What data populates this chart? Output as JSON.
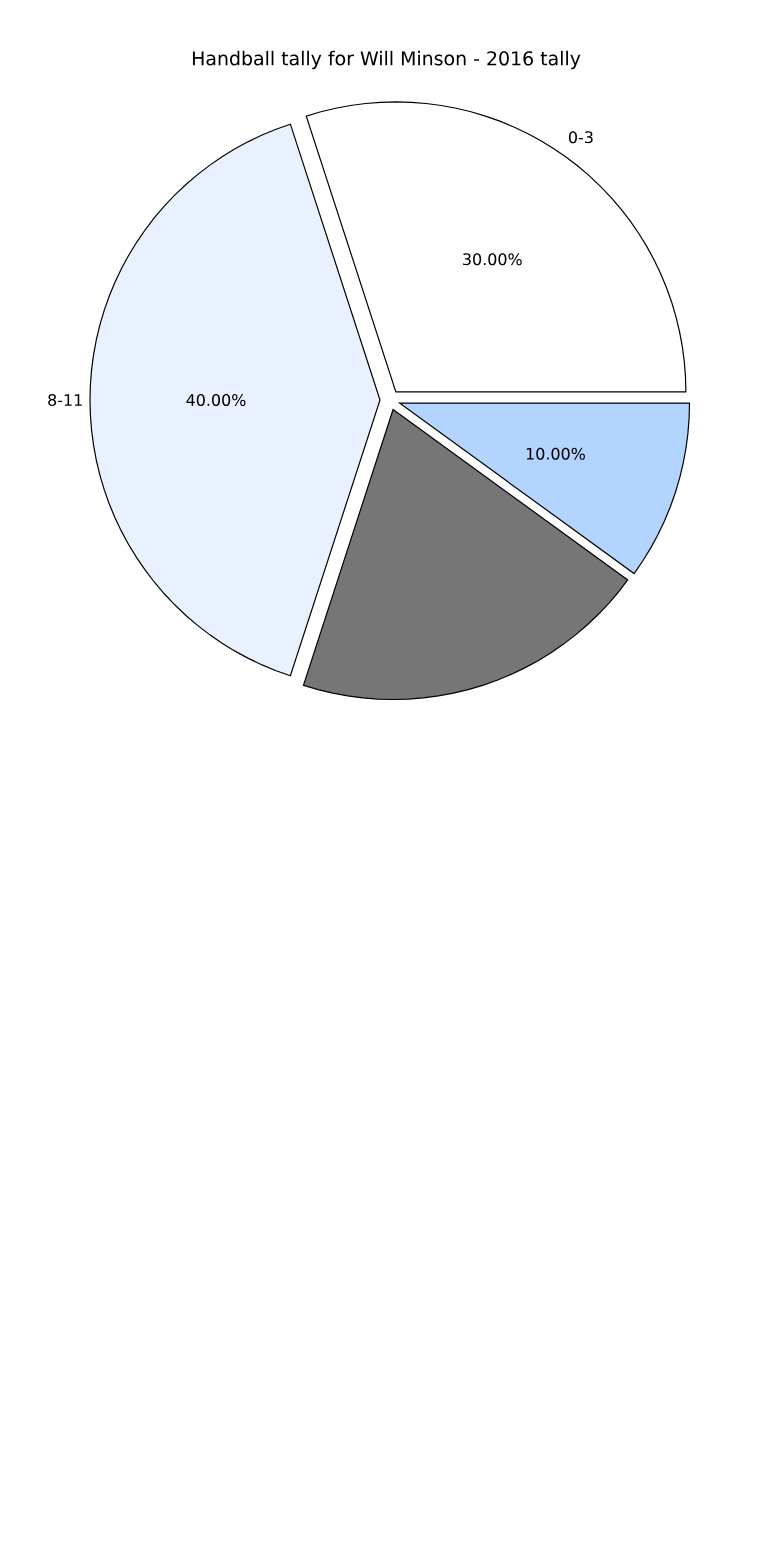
{
  "chart_data": {
    "type": "pie",
    "title": "Handball tally for Will Minson - 2016 tally",
    "categories": [
      "0-3",
      "8-11",
      null,
      null
    ],
    "values": [
      30,
      40,
      20,
      10
    ],
    "colors": [
      "#ffffff",
      "#eaf1fe",
      "#767676",
      "#b3d4fe"
    ],
    "value_labels": [
      "30.00%",
      "40.00%",
      null,
      "10.00%"
    ]
  }
}
